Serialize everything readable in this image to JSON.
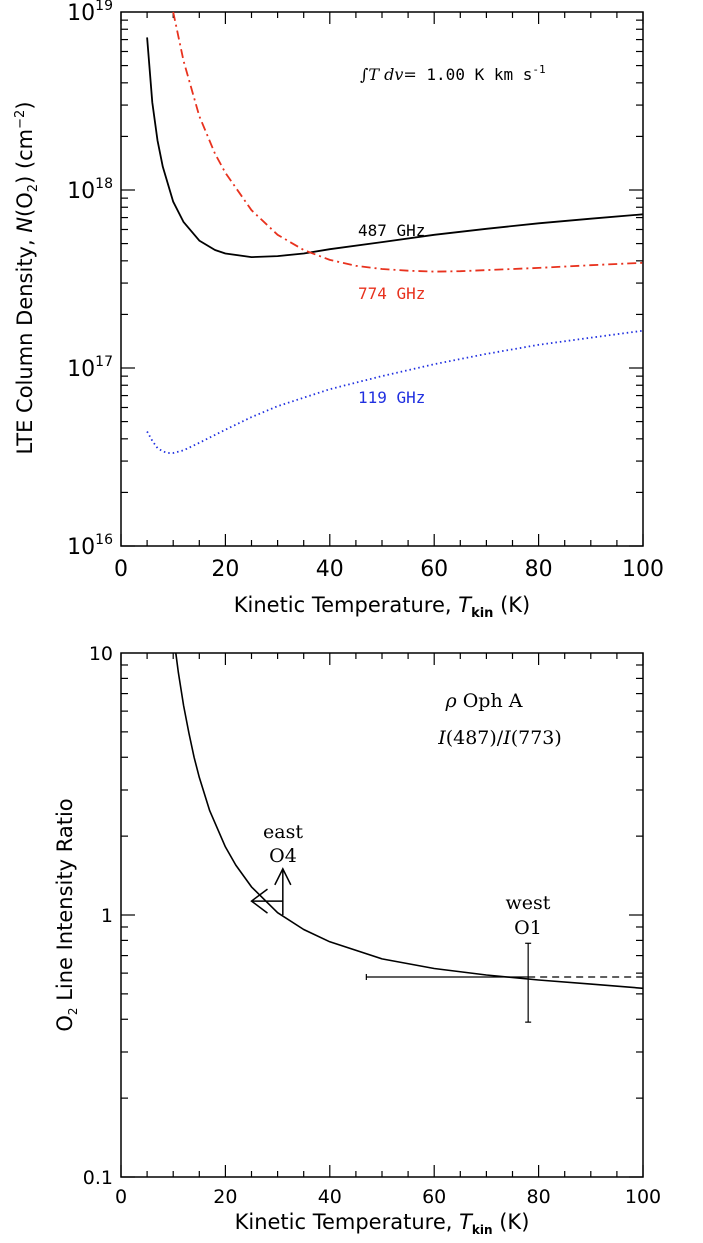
{
  "chart_data": [
    {
      "type": "line",
      "xlabel_prefix": "Kinetic Temperature, ",
      "xlabel_var": "T",
      "xlabel_sub": "kin",
      "xlabel_suffix": " (K)",
      "ylabel_prefix": "LTE Column Density, ",
      "ylabel_var": "N",
      "ylabel_paren": "(O",
      "ylabel_sub": "2",
      "ylabel_suffix": ") (cm",
      "ylabel_sup": "−2",
      "ylabel_end": ")",
      "annotation_integral": "∫T dv=",
      "annotation_value": " 1.00 K km s",
      "annotation_sup": "-1",
      "xlim": [
        0,
        100
      ],
      "ylim": [
        1e+16,
        1e+19
      ],
      "yscale": "log",
      "x_ticks": [
        "0",
        "20",
        "40",
        "60",
        "80",
        "100"
      ],
      "y_tick_base": "10",
      "y_tick_exponents": [
        "16",
        "17",
        "18",
        "19"
      ],
      "series": [
        {
          "name": "487 GHz",
          "color": "#000000",
          "style": "solid",
          "x": [
            5,
            6,
            7,
            8,
            10,
            12,
            15,
            18,
            20,
            25,
            30,
            35,
            40,
            50,
            60,
            70,
            80,
            90,
            100
          ],
          "y": [
            7.2e+18,
            3.1e+18,
            1.9e+18,
            1.35e+18,
            8.6e+17,
            6.6e+17,
            5.2e+17,
            4.6e+17,
            4.4e+17,
            4.2e+17,
            4.25e+17,
            4.4e+17,
            4.65e+17,
            5.1e+17,
            5.6e+17,
            6.05e+17,
            6.5e+17,
            6.9e+17,
            7.3e+17
          ]
        },
        {
          "name": "774 GHz",
          "color": "#e8321e",
          "style": "dashdot",
          "x": [
            10,
            12,
            15,
            18,
            20,
            25,
            30,
            35,
            40,
            45,
            50,
            55,
            60,
            65,
            70,
            80,
            90,
            100
          ],
          "y": [
            1e+19,
            5.3e+18,
            2.6e+18,
            1.6e+18,
            1.25e+18,
            7.7e+17,
            5.6e+17,
            4.6e+17,
            4.05e+17,
            3.75e+17,
            3.6e+17,
            3.52e+17,
            3.48e+17,
            3.5e+17,
            3.55e+17,
            3.65e+17,
            3.78e+17,
            3.9e+17
          ]
        },
        {
          "name": "119 GHz",
          "color": "#2030e0",
          "style": "dotted",
          "x": [
            5,
            6,
            7,
            8,
            9,
            10,
            12,
            15,
            20,
            25,
            30,
            40,
            50,
            60,
            70,
            80,
            90,
            100
          ],
          "y": [
            4.4e+16,
            3.9e+16,
            3.55e+16,
            3.4e+16,
            3.33e+16,
            3.33e+16,
            3.45e+16,
            3.8e+16,
            4.5e+16,
            5.3e+16,
            6.1e+16,
            7.6e+16,
            9e+16,
            1.05e+17,
            1.2e+17,
            1.35e+17,
            1.48e+17,
            1.62e+17
          ]
        }
      ]
    },
    {
      "type": "line",
      "xlabel_prefix": "Kinetic Temperature, ",
      "xlabel_var": "T",
      "xlabel_sub": "kin",
      "xlabel_suffix": " (K)",
      "ylabel_prefix": "O",
      "ylabel_sub": "2",
      "ylabel_suffix": " Line Intensity Ratio",
      "annotation_line1_greek": "ρ",
      "annotation_line1_rest": " Oph A",
      "annotation_line2_I1": "I",
      "annotation_line2_mid": "(487)/",
      "annotation_line2_I2": "I",
      "annotation_line2_end": "(773)",
      "xlim": [
        0,
        100
      ],
      "ylim": [
        0.1,
        10
      ],
      "yscale": "log",
      "x_ticks": [
        "0",
        "20",
        "40",
        "60",
        "80",
        "100"
      ],
      "y_ticks": [
        "0.1",
        "1",
        "10"
      ],
      "curve": {
        "color": "#000000",
        "x": [
          10.5,
          11,
          12,
          13,
          14,
          15,
          17,
          20,
          22,
          25,
          30,
          35,
          40,
          50,
          60,
          70,
          80,
          90,
          100
        ],
        "y": [
          10,
          8.4,
          6.3,
          4.95,
          4.0,
          3.35,
          2.5,
          1.82,
          1.55,
          1.28,
          1.02,
          0.88,
          0.79,
          0.68,
          0.625,
          0.59,
          0.565,
          0.545,
          0.525
        ]
      },
      "points": [
        {
          "label_top": "east",
          "label_bottom": "O4",
          "x": 31,
          "y": 1.13,
          "type": "limit",
          "arrow_left_to_x": 25,
          "arrow_up_to_y": 1.5
        },
        {
          "label_top": "west",
          "label_bottom": "O1",
          "x": 78,
          "y": 0.58,
          "type": "errorbar",
          "xerr_low": 47,
          "xerr_high_dashed": 100,
          "yerr_low": 0.39,
          "yerr_high": 0.78
        }
      ]
    }
  ]
}
